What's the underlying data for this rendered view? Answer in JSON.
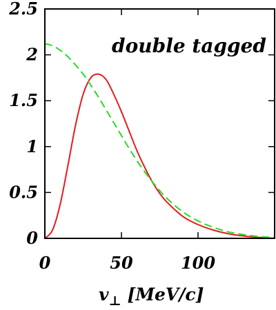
{
  "chart_data": {
    "type": "line",
    "title": "",
    "annotation": "double tagged",
    "xlabel_main": "v",
    "xlabel_sub": "⊥",
    "xlabel_unit": " [MeV/c]",
    "ylabel": "",
    "xlim": [
      0,
      150
    ],
    "ylim": [
      0,
      2.5
    ],
    "x_ticks": [
      0,
      50,
      100
    ],
    "x_tick_labels": [
      "0",
      "50",
      "100"
    ],
    "y_ticks": [
      0,
      0.5,
      1,
      1.5,
      2,
      2.5
    ],
    "y_tick_labels": [
      "0",
      "0.5",
      "1",
      "1.5",
      "2",
      "2.5"
    ],
    "grid": false,
    "series": [
      {
        "color": "#e31a1c",
        "style": "solid",
        "x": [
          0,
          5,
          10,
          15,
          20,
          25,
          30,
          35,
          40,
          45,
          50,
          55,
          60,
          65,
          70,
          75,
          80,
          90,
          100,
          110,
          120,
          130,
          140,
          150
        ],
        "y": [
          0,
          0.09,
          0.37,
          0.79,
          1.23,
          1.57,
          1.75,
          1.79,
          1.73,
          1.57,
          1.38,
          1.17,
          0.96,
          0.78,
          0.62,
          0.49,
          0.39,
          0.24,
          0.15,
          0.09,
          0.05,
          0.025,
          0.01,
          0
        ]
      },
      {
        "color": "#22dd22",
        "style": "dashed",
        "x": [
          0,
          5,
          10,
          15,
          20,
          25,
          30,
          35,
          40,
          45,
          50,
          55,
          60,
          65,
          70,
          75,
          80,
          90,
          100,
          110,
          120,
          130,
          140,
          150
        ],
        "y": [
          2.12,
          2.1,
          2.05,
          1.98,
          1.89,
          1.79,
          1.67,
          1.54,
          1.4,
          1.26,
          1.12,
          0.98,
          0.85,
          0.73,
          0.62,
          0.52,
          0.43,
          0.29,
          0.19,
          0.12,
          0.07,
          0.04,
          0.02,
          0.01
        ]
      }
    ]
  }
}
